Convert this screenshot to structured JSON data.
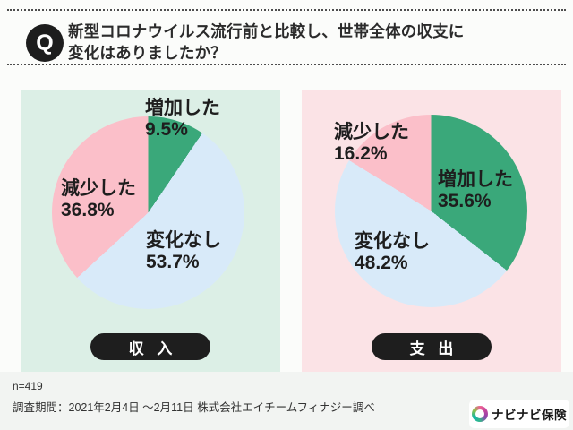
{
  "header": {
    "badge": "Q",
    "question_line1": "新型コロナウイルス流行前と比較し、世帯全体の収支に",
    "question_line2": "変化はありましたか？"
  },
  "colors": {
    "increase": "#3aa87a",
    "no_change": "#d8eaf9",
    "decrease": "#fbbfc9",
    "panel_income_bg": "#dcefe6",
    "panel_expense_bg": "#fbe3e6",
    "pill_bg": "#1e1e1e",
    "pill_text": "#ffffff"
  },
  "income": {
    "pill": "収 入",
    "slices": [
      {
        "key": "increase",
        "label": "増加した",
        "pct": "9.5%",
        "value": 9.5
      },
      {
        "key": "no_change",
        "label": "変化なし",
        "pct": "53.7%",
        "value": 53.7
      },
      {
        "key": "decrease",
        "label": "減少した",
        "pct": "36.8%",
        "value": 36.8
      }
    ]
  },
  "expense": {
    "pill": "支 出",
    "slices": [
      {
        "key": "increase",
        "label": "増加した",
        "pct": "35.6%",
        "value": 35.6
      },
      {
        "key": "no_change",
        "label": "変化なし",
        "pct": "48.2%",
        "value": 48.2
      },
      {
        "key": "decrease",
        "label": "減少した",
        "pct": "16.2%",
        "value": 16.2
      }
    ]
  },
  "chart_data": [
    {
      "type": "pie",
      "title": "収入",
      "categories": [
        "増加した",
        "変化なし",
        "減少した"
      ],
      "values": [
        9.5,
        53.7,
        36.8
      ],
      "unit": "%",
      "colors": [
        "#3aa87a",
        "#d8eaf9",
        "#fbbfc9"
      ],
      "start_angle": "12 o'clock",
      "direction": "clockwise",
      "legend_position": "labels-on-chart"
    },
    {
      "type": "pie",
      "title": "支出",
      "categories": [
        "増加した",
        "変化なし",
        "減少した"
      ],
      "values": [
        35.6,
        48.2,
        16.2
      ],
      "unit": "%",
      "colors": [
        "#3aa87a",
        "#d8eaf9",
        "#fbbfc9"
      ],
      "start_angle": "12 o'clock",
      "direction": "clockwise",
      "legend_position": "labels-on-chart"
    }
  ],
  "footer": {
    "sample_size": "n=419",
    "period": "調査期間：2021年2月4日 ～2月11日 株式会社エイチームフィナジー調べ",
    "logo_text": "ナビナビ保険"
  }
}
